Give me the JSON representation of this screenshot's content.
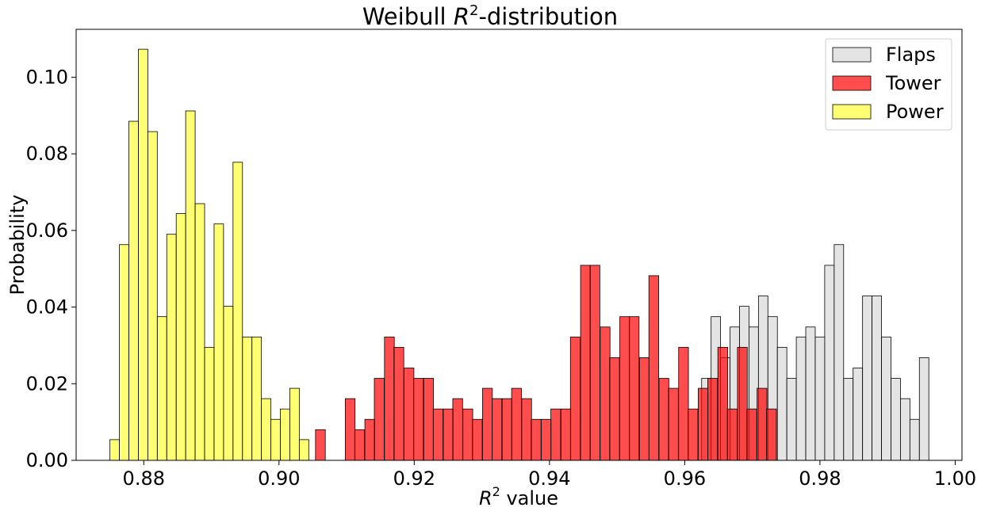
{
  "chart_data": {
    "type": "bar",
    "title_prefix": "Weibull ",
    "title_var": "R",
    "title_sup": "2",
    "title_suffix": "-distribution",
    "xlabel_var": "R",
    "xlabel_sup": "2",
    "xlabel_suffix": " value",
    "ylabel": "Probability",
    "xlim": [
      0.87,
      1.001
    ],
    "ylim": [
      0,
      0.1125
    ],
    "xticks": [
      0.88,
      0.9,
      0.92,
      0.94,
      0.96,
      0.98,
      1.0
    ],
    "xtick_labels": [
      "0.88",
      "0.90",
      "0.92",
      "0.94",
      "0.96",
      "0.98",
      "1.00"
    ],
    "yticks": [
      0,
      0.02,
      0.04,
      0.06,
      0.08,
      0.1
    ],
    "ytick_labels": [
      "0.00",
      "0.02",
      "0.04",
      "0.06",
      "0.08",
      "0.10"
    ],
    "grid": false,
    "legend_position": "top-right",
    "series": [
      {
        "name": "Flaps",
        "color": "#d9d9d9",
        "alpha": 0.7,
        "bin_width": 0.0014,
        "bins": [
          [
            0.9625,
            0.0214
          ],
          [
            0.9639,
            0.0375
          ],
          [
            0.9653,
            0.0268
          ],
          [
            0.9667,
            0.0348
          ],
          [
            0.9681,
            0.0402
          ],
          [
            0.9695,
            0.0348
          ],
          [
            0.9709,
            0.0429
          ],
          [
            0.9723,
            0.0375
          ],
          [
            0.9737,
            0.0295
          ],
          [
            0.9751,
            0.0214
          ],
          [
            0.9765,
            0.0322
          ],
          [
            0.9779,
            0.0348
          ],
          [
            0.9793,
            0.0322
          ],
          [
            0.9807,
            0.0509
          ],
          [
            0.9821,
            0.0563
          ],
          [
            0.9835,
            0.0214
          ],
          [
            0.9849,
            0.0241
          ],
          [
            0.9863,
            0.0429
          ],
          [
            0.9877,
            0.0429
          ],
          [
            0.9891,
            0.0322
          ],
          [
            0.9905,
            0.0214
          ],
          [
            0.9919,
            0.0161
          ],
          [
            0.9933,
            0.0107
          ],
          [
            0.9947,
            0.0268
          ]
        ]
      },
      {
        "name": "Tower",
        "color": "#ff0000",
        "alpha": 0.7,
        "bin_width": 0.00145,
        "bins": [
          [
            0.9054,
            0.008
          ],
          [
            0.9098,
            0.0161
          ],
          [
            0.9112,
            0.008
          ],
          [
            0.9127,
            0.0107
          ],
          [
            0.9141,
            0.0214
          ],
          [
            0.9156,
            0.0322
          ],
          [
            0.917,
            0.0295
          ],
          [
            0.9185,
            0.0241
          ],
          [
            0.9199,
            0.0214
          ],
          [
            0.9214,
            0.0214
          ],
          [
            0.9228,
            0.0134
          ],
          [
            0.9243,
            0.0134
          ],
          [
            0.9257,
            0.0161
          ],
          [
            0.9272,
            0.0134
          ],
          [
            0.9286,
            0.0107
          ],
          [
            0.9301,
            0.0188
          ],
          [
            0.9315,
            0.0161
          ],
          [
            0.933,
            0.0161
          ],
          [
            0.9344,
            0.0188
          ],
          [
            0.9359,
            0.0161
          ],
          [
            0.9373,
            0.0107
          ],
          [
            0.9388,
            0.0107
          ],
          [
            0.9402,
            0.0134
          ],
          [
            0.9417,
            0.0134
          ],
          [
            0.9431,
            0.0322
          ],
          [
            0.9446,
            0.0509
          ],
          [
            0.946,
            0.0509
          ],
          [
            0.9475,
            0.0348
          ],
          [
            0.9489,
            0.0268
          ],
          [
            0.9504,
            0.0375
          ],
          [
            0.9518,
            0.0375
          ],
          [
            0.9533,
            0.0268
          ],
          [
            0.9547,
            0.0482
          ],
          [
            0.9562,
            0.0214
          ],
          [
            0.9576,
            0.0188
          ],
          [
            0.9591,
            0.0295
          ],
          [
            0.9605,
            0.0134
          ],
          [
            0.962,
            0.0188
          ],
          [
            0.9634,
            0.0214
          ],
          [
            0.9649,
            0.0295
          ],
          [
            0.9663,
            0.0134
          ],
          [
            0.9678,
            0.0295
          ],
          [
            0.9692,
            0.0134
          ],
          [
            0.9707,
            0.0188
          ],
          [
            0.9721,
            0.0134
          ]
        ]
      },
      {
        "name": "Power",
        "color": "#ffff00",
        "alpha": 0.55,
        "bin_width": 0.0014,
        "bins": [
          [
            0.875,
            0.0054
          ],
          [
            0.8764,
            0.0563
          ],
          [
            0.8778,
            0.0885
          ],
          [
            0.8792,
            0.1073
          ],
          [
            0.8806,
            0.0858
          ],
          [
            0.882,
            0.0375
          ],
          [
            0.8834,
            0.059
          ],
          [
            0.8848,
            0.0644
          ],
          [
            0.8862,
            0.0912
          ],
          [
            0.8876,
            0.067
          ],
          [
            0.889,
            0.0295
          ],
          [
            0.8904,
            0.0617
          ],
          [
            0.8918,
            0.0402
          ],
          [
            0.8932,
            0.0778
          ],
          [
            0.8946,
            0.0322
          ],
          [
            0.896,
            0.0322
          ],
          [
            0.8974,
            0.0161
          ],
          [
            0.8988,
            0.0107
          ],
          [
            0.9002,
            0.0134
          ],
          [
            0.9016,
            0.0188
          ],
          [
            0.903,
            0.0054
          ]
        ]
      }
    ]
  }
}
